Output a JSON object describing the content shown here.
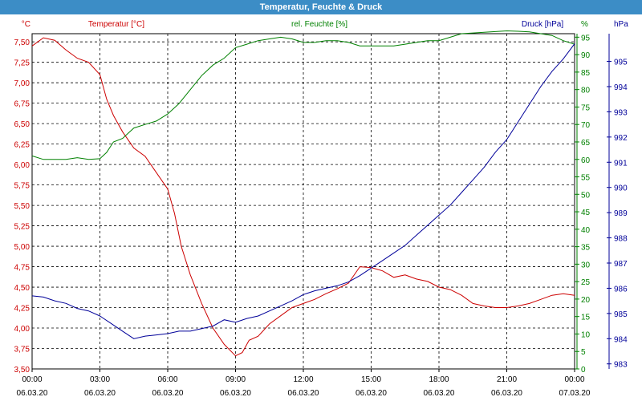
{
  "window": {
    "title": "Temperatur, Feuchte & Druck"
  },
  "chart_data": {
    "type": "line",
    "title": "Temperatur, Feuchte & Druck",
    "colors": {
      "temperature": "#cc0000",
      "humidity": "#008000",
      "pressure": "#000099",
      "grid": "#000000"
    },
    "axes": {
      "temperature": {
        "label": "Temperatur [°C]",
        "unit": "°C",
        "range": [
          3.5,
          7.6
        ],
        "ticks": [
          "3,50",
          "3,75",
          "4,00",
          "4,25",
          "4,50",
          "4,75",
          "5,00",
          "5,25",
          "5,50",
          "5,75",
          "6,00",
          "6,25",
          "6,50",
          "6,75",
          "7,00",
          "7,25",
          "7,50"
        ]
      },
      "humidity": {
        "label": "rel. Feuchte [%]",
        "unit": "%",
        "range": [
          0,
          96
        ],
        "ticks": [
          "0",
          "5",
          "10",
          "15",
          "20",
          "25",
          "30",
          "35",
          "40",
          "45",
          "50",
          "55",
          "60",
          "65",
          "70",
          "75",
          "80",
          "85",
          "90",
          "95"
        ]
      },
      "pressure": {
        "label": "Druck [hPa]",
        "unit": "hPa",
        "range": [
          982.8,
          996.1
        ],
        "ticks": [
          "983",
          "984",
          "985",
          "986",
          "987",
          "988",
          "989",
          "990",
          "991",
          "992",
          "993",
          "994",
          "995"
        ]
      }
    },
    "x_ticks": [
      {
        "time": "00:00",
        "date": "06.03.20"
      },
      {
        "time": "03:00",
        "date": "06.03.20"
      },
      {
        "time": "06:00",
        "date": "06.03.20"
      },
      {
        "time": "09:00",
        "date": "06.03.20"
      },
      {
        "time": "12:00",
        "date": "06.03.20"
      },
      {
        "time": "15:00",
        "date": "06.03.20"
      },
      {
        "time": "18:00",
        "date": "06.03.20"
      },
      {
        "time": "21:00",
        "date": "06.03.20"
      },
      {
        "time": "00:00",
        "date": "07.03.20"
      }
    ],
    "x_range_hours": [
      0,
      24
    ],
    "series": [
      {
        "name": "Temperatur",
        "axis": "temperature",
        "points": [
          [
            0,
            7.45
          ],
          [
            0.5,
            7.55
          ],
          [
            1,
            7.52
          ],
          [
            1.5,
            7.4
          ],
          [
            2,
            7.3
          ],
          [
            2.5,
            7.25
          ],
          [
            3,
            7.1
          ],
          [
            3.3,
            6.8
          ],
          [
            3.6,
            6.6
          ],
          [
            4,
            6.4
          ],
          [
            4.5,
            6.2
          ],
          [
            5,
            6.1
          ],
          [
            5.5,
            5.9
          ],
          [
            6,
            5.7
          ],
          [
            6.3,
            5.4
          ],
          [
            6.6,
            5.0
          ],
          [
            7,
            4.65
          ],
          [
            7.5,
            4.3
          ],
          [
            8,
            4.0
          ],
          [
            8.5,
            3.8
          ],
          [
            9,
            3.66
          ],
          [
            9.3,
            3.7
          ],
          [
            9.6,
            3.85
          ],
          [
            10,
            3.9
          ],
          [
            10.5,
            4.05
          ],
          [
            11,
            4.15
          ],
          [
            11.5,
            4.25
          ],
          [
            12,
            4.3
          ],
          [
            12.5,
            4.35
          ],
          [
            13,
            4.42
          ],
          [
            13.5,
            4.48
          ],
          [
            14,
            4.55
          ],
          [
            14.5,
            4.75
          ],
          [
            15,
            4.74
          ],
          [
            15.5,
            4.7
          ],
          [
            16,
            4.62
          ],
          [
            16.5,
            4.65
          ],
          [
            17,
            4.6
          ],
          [
            17.5,
            4.57
          ],
          [
            18,
            4.5
          ],
          [
            18.5,
            4.47
          ],
          [
            19,
            4.4
          ],
          [
            19.5,
            4.3
          ],
          [
            20,
            4.27
          ],
          [
            20.5,
            4.25
          ],
          [
            21,
            4.25
          ],
          [
            21.5,
            4.27
          ],
          [
            22,
            4.3
          ],
          [
            22.5,
            4.35
          ],
          [
            23,
            4.4
          ],
          [
            23.5,
            4.42
          ],
          [
            24,
            4.4
          ]
        ]
      },
      {
        "name": "rel. Feuchte",
        "axis": "humidity",
        "points": [
          [
            0,
            61
          ],
          [
            0.5,
            60
          ],
          [
            1,
            60
          ],
          [
            1.5,
            60
          ],
          [
            2,
            60.5
          ],
          [
            2.5,
            60
          ],
          [
            3,
            60.2
          ],
          [
            3.3,
            62
          ],
          [
            3.6,
            65
          ],
          [
            4,
            66
          ],
          [
            4.5,
            69
          ],
          [
            5,
            70
          ],
          [
            5.5,
            71
          ],
          [
            6,
            73
          ],
          [
            6.5,
            76
          ],
          [
            7,
            80
          ],
          [
            7.5,
            84
          ],
          [
            8,
            87
          ],
          [
            8.5,
            89
          ],
          [
            9,
            92
          ],
          [
            9.5,
            93
          ],
          [
            10,
            94
          ],
          [
            10.5,
            94.5
          ],
          [
            11,
            95
          ],
          [
            11.5,
            94.5
          ],
          [
            12,
            93.5
          ],
          [
            12.5,
            93.5
          ],
          [
            13,
            94
          ],
          [
            13.5,
            94
          ],
          [
            14,
            93.5
          ],
          [
            14.5,
            92.5
          ],
          [
            15,
            92.5
          ],
          [
            15.5,
            92.5
          ],
          [
            16,
            92.5
          ],
          [
            16.5,
            93
          ],
          [
            17,
            93.5
          ],
          [
            17.5,
            94
          ],
          [
            18,
            94
          ],
          [
            18.5,
            95
          ],
          [
            19,
            96
          ],
          [
            19.5,
            96.2
          ],
          [
            20,
            96.4
          ],
          [
            20.5,
            96.6
          ],
          [
            21,
            96.8
          ],
          [
            21.5,
            96.7
          ],
          [
            22,
            96.5
          ],
          [
            22.5,
            96
          ],
          [
            23,
            95.5
          ],
          [
            23.5,
            94
          ],
          [
            24,
            93
          ]
        ]
      },
      {
        "name": "Druck",
        "axis": "pressure",
        "points": [
          [
            0,
            985.7
          ],
          [
            0.5,
            985.65
          ],
          [
            1,
            985.5
          ],
          [
            1.5,
            985.4
          ],
          [
            2,
            985.2
          ],
          [
            2.5,
            985.1
          ],
          [
            3,
            984.9
          ],
          [
            3.5,
            984.6
          ],
          [
            4,
            984.3
          ],
          [
            4.5,
            984.0
          ],
          [
            5,
            984.1
          ],
          [
            5.5,
            984.15
          ],
          [
            6,
            984.2
          ],
          [
            6.5,
            984.3
          ],
          [
            7,
            984.3
          ],
          [
            7.5,
            984.4
          ],
          [
            8,
            984.5
          ],
          [
            8.5,
            984.75
          ],
          [
            9,
            984.65
          ],
          [
            9.5,
            984.8
          ],
          [
            10,
            984.9
          ],
          [
            10.5,
            985.1
          ],
          [
            11,
            985.3
          ],
          [
            11.5,
            985.5
          ],
          [
            12,
            985.75
          ],
          [
            12.5,
            985.9
          ],
          [
            13,
            986.0
          ],
          [
            13.5,
            986.1
          ],
          [
            14,
            986.25
          ],
          [
            14.5,
            986.5
          ],
          [
            15,
            986.8
          ],
          [
            15.5,
            987.1
          ],
          [
            16,
            987.4
          ],
          [
            16.5,
            987.7
          ],
          [
            17,
            988.1
          ],
          [
            17.5,
            988.5
          ],
          [
            18,
            988.9
          ],
          [
            18.5,
            989.3
          ],
          [
            19,
            989.8
          ],
          [
            19.5,
            990.3
          ],
          [
            20,
            990.8
          ],
          [
            20.5,
            991.4
          ],
          [
            21,
            991.9
          ],
          [
            21.5,
            992.6
          ],
          [
            22,
            993.3
          ],
          [
            22.5,
            994.0
          ],
          [
            23,
            994.6
          ],
          [
            23.5,
            995.1
          ],
          [
            24,
            995.7
          ]
        ]
      }
    ]
  }
}
